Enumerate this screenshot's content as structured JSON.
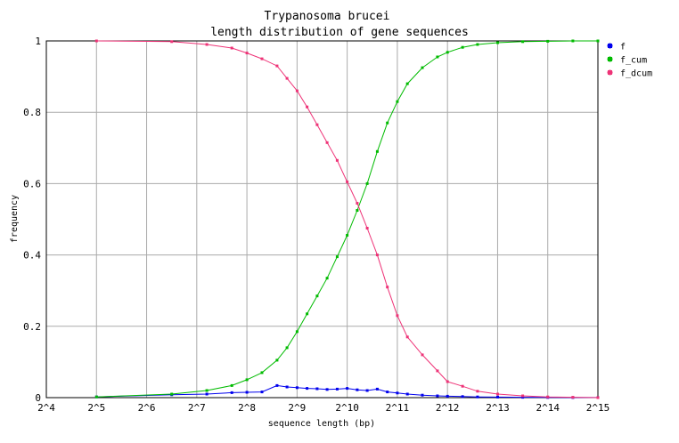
{
  "chart_data": {
    "type": "line",
    "title_lines": [
      "Trypanosoma brucei",
      "length distribution of gene sequences"
    ],
    "xlabel": "sequence length (bp)",
    "ylabel": "frequency",
    "x_scale": "log2",
    "x_ticks": [
      "2^4",
      "2^5",
      "2^6",
      "2^7",
      "2^8",
      "2^9",
      "2^10",
      "2^11",
      "2^12",
      "2^13",
      "2^14",
      "2^15"
    ],
    "y_ticks": [
      "0",
      "0.2",
      "0.4",
      "0.6",
      "0.8",
      "1"
    ],
    "xlim": [
      "2^4",
      "2^15"
    ],
    "ylim": [
      0,
      1
    ],
    "grid": true,
    "legend_position": "top-right, outside plot",
    "series": [
      {
        "name": "f",
        "color": "#0000ee",
        "x_log2": [
          5.0,
          6.5,
          7.2,
          7.7,
          8.0,
          8.3,
          8.6,
          8.8,
          9.0,
          9.2,
          9.4,
          9.6,
          9.8,
          10.0,
          10.2,
          10.4,
          10.6,
          10.8,
          11.0,
          11.2,
          11.5,
          11.8,
          12.0,
          12.3,
          12.6,
          13.0,
          13.5,
          14.0,
          14.5,
          15.0
        ],
        "values": [
          0.002,
          0.008,
          0.01,
          0.014,
          0.015,
          0.016,
          0.034,
          0.03,
          0.028,
          0.026,
          0.025,
          0.023,
          0.024,
          0.026,
          0.022,
          0.02,
          0.024,
          0.016,
          0.013,
          0.01,
          0.007,
          0.005,
          0.004,
          0.003,
          0.002,
          0.0015,
          0.001,
          0.0005,
          0.0003,
          0.0002
        ]
      },
      {
        "name": "f_cum",
        "color": "#00bb00",
        "x_log2": [
          5.0,
          6.5,
          7.2,
          7.7,
          8.0,
          8.3,
          8.6,
          8.8,
          9.0,
          9.2,
          9.4,
          9.6,
          9.8,
          10.0,
          10.2,
          10.4,
          10.6,
          10.8,
          11.0,
          11.2,
          11.5,
          11.8,
          12.0,
          12.3,
          12.6,
          13.0,
          13.5,
          14.0,
          14.5,
          15.0
        ],
        "values": [
          0.002,
          0.01,
          0.02,
          0.034,
          0.05,
          0.07,
          0.105,
          0.14,
          0.185,
          0.235,
          0.285,
          0.335,
          0.395,
          0.455,
          0.525,
          0.6,
          0.69,
          0.77,
          0.83,
          0.88,
          0.925,
          0.955,
          0.968,
          0.982,
          0.99,
          0.995,
          0.998,
          0.999,
          1.0,
          1.0
        ]
      },
      {
        "name": "f_dcum",
        "color": "#ee3377",
        "x_log2": [
          5.0,
          6.5,
          7.2,
          7.7,
          8.0,
          8.3,
          8.6,
          8.8,
          9.0,
          9.2,
          9.4,
          9.6,
          9.8,
          10.0,
          10.2,
          10.4,
          10.6,
          10.8,
          11.0,
          11.2,
          11.5,
          11.8,
          12.0,
          12.3,
          12.6,
          13.0,
          13.5,
          14.0,
          14.5,
          15.0
        ],
        "values": [
          1.0,
          0.998,
          0.99,
          0.98,
          0.966,
          0.95,
          0.93,
          0.895,
          0.86,
          0.815,
          0.765,
          0.715,
          0.665,
          0.605,
          0.545,
          0.475,
          0.4,
          0.31,
          0.23,
          0.17,
          0.12,
          0.075,
          0.045,
          0.032,
          0.018,
          0.01,
          0.005,
          0.002,
          0.001,
          0.0
        ]
      }
    ]
  }
}
